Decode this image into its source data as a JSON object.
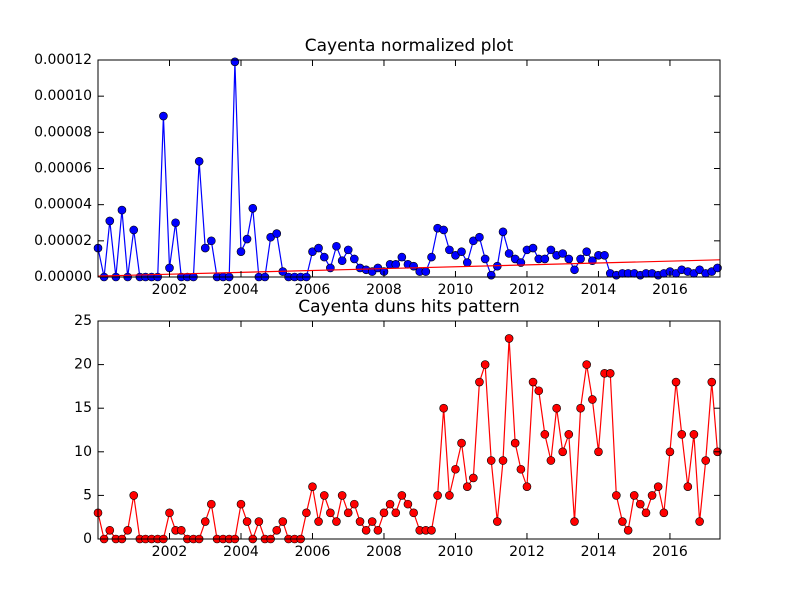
{
  "chart_data": [
    {
      "type": "line",
      "title": "Cayenta normalized plot",
      "x": [
        2000,
        2000.17,
        2000.33,
        2000.5,
        2000.67,
        2000.83,
        2001,
        2001.17,
        2001.33,
        2001.5,
        2001.67,
        2001.83,
        2002,
        2002.17,
        2002.33,
        2002.5,
        2002.67,
        2002.83,
        2003,
        2003.17,
        2003.33,
        2003.5,
        2003.67,
        2003.83,
        2004,
        2004.17,
        2004.33,
        2004.5,
        2004.67,
        2004.83,
        2005,
        2005.17,
        2005.33,
        2005.5,
        2005.67,
        2005.83,
        2006,
        2006.17,
        2006.33,
        2006.5,
        2006.67,
        2006.83,
        2007,
        2007.17,
        2007.33,
        2007.5,
        2007.67,
        2007.83,
        2008,
        2008.17,
        2008.33,
        2008.5,
        2008.67,
        2008.83,
        2009,
        2009.17,
        2009.33,
        2009.5,
        2009.67,
        2009.83,
        2010,
        2010.17,
        2010.33,
        2010.5,
        2010.67,
        2010.83,
        2011,
        2011.17,
        2011.33,
        2011.5,
        2011.67,
        2011.83,
        2012,
        2012.17,
        2012.33,
        2012.5,
        2012.67,
        2012.83,
        2013,
        2013.17,
        2013.33,
        2013.5,
        2013.67,
        2013.83,
        2014,
        2014.17,
        2014.33,
        2014.5,
        2014.67,
        2014.83,
        2015,
        2015.17,
        2015.33,
        2015.5,
        2015.67,
        2015.83,
        2016,
        2016.17,
        2016.33,
        2016.5,
        2016.67,
        2016.83,
        2017,
        2017.17,
        2017.33
      ],
      "series": [
        {
          "color": "#0000ff",
          "values": [
            1.6e-05,
            0,
            3.1e-05,
            0,
            3.7e-05,
            0,
            2.6e-05,
            0,
            0,
            0,
            0,
            8.9e-05,
            5e-06,
            3e-05,
            0,
            0,
            0,
            6.4e-05,
            1.6e-05,
            2e-05,
            0,
            0,
            0,
            0.000119,
            1.4e-05,
            2.1e-05,
            3.8e-05,
            0,
            0,
            2.2e-05,
            2.4e-05,
            3e-06,
            0,
            0,
            0,
            0,
            1.4e-05,
            1.6e-05,
            1.1e-05,
            5e-06,
            1.7e-05,
            9e-06,
            1.5e-05,
            1e-05,
            5e-06,
            4e-06,
            3e-06,
            5e-06,
            3e-06,
            7e-06,
            7e-06,
            1.1e-05,
            7e-06,
            6e-06,
            3e-06,
            3e-06,
            1.1e-05,
            2.7e-05,
            2.6e-05,
            1.5e-05,
            1.2e-05,
            1.4e-05,
            8e-06,
            2e-05,
            2.2e-05,
            1e-05,
            1e-06,
            6e-06,
            2.5e-05,
            1.3e-05,
            1e-05,
            8e-06,
            1.5e-05,
            1.6e-05,
            1e-05,
            1e-05,
            1.5e-05,
            1.2e-05,
            1.3e-05,
            1e-05,
            4e-06,
            1e-05,
            1.4e-05,
            9e-06,
            1.2e-05,
            1.2e-05,
            2e-06,
            1e-06,
            2e-06,
            2e-06,
            2e-06,
            1e-06,
            2e-06,
            2e-06,
            1e-06,
            2e-06,
            3e-06,
            2e-06,
            4e-06,
            3e-06,
            2e-06,
            4e-06,
            2e-06,
            3e-06,
            5e-06
          ]
        }
      ],
      "trend": {
        "color": "#ff0000",
        "x": [
          2000,
          2017.4
        ],
        "values": [
          5e-07,
          9.5e-06
        ]
      },
      "xlim": [
        2000,
        2017.4
      ],
      "xticks": [
        2002,
        2004,
        2006,
        2008,
        2010,
        2012,
        2014,
        2016
      ],
      "ylim": [
        0,
        0.00012
      ],
      "yticks": [
        {
          "value": 0,
          "label": "0.00000"
        },
        {
          "value": 2e-05,
          "label": "0.00002"
        },
        {
          "value": 4e-05,
          "label": "0.00004"
        },
        {
          "value": 6e-05,
          "label": "0.00006"
        },
        {
          "value": 8e-05,
          "label": "0.00008"
        },
        {
          "value": 0.0001,
          "label": "0.00010"
        },
        {
          "value": 0.00012,
          "label": "0.00012"
        }
      ]
    },
    {
      "type": "line",
      "title": "Cayenta duns hits pattern",
      "x": [
        2000,
        2000.17,
        2000.33,
        2000.5,
        2000.67,
        2000.83,
        2001,
        2001.17,
        2001.33,
        2001.5,
        2001.67,
        2001.83,
        2002,
        2002.17,
        2002.33,
        2002.5,
        2002.67,
        2002.83,
        2003,
        2003.17,
        2003.33,
        2003.5,
        2003.67,
        2003.83,
        2004,
        2004.17,
        2004.33,
        2004.5,
        2004.67,
        2004.83,
        2005,
        2005.17,
        2005.33,
        2005.5,
        2005.67,
        2005.83,
        2006,
        2006.17,
        2006.33,
        2006.5,
        2006.67,
        2006.83,
        2007,
        2007.17,
        2007.33,
        2007.5,
        2007.67,
        2007.83,
        2008,
        2008.17,
        2008.33,
        2008.5,
        2008.67,
        2008.83,
        2009,
        2009.17,
        2009.33,
        2009.5,
        2009.67,
        2009.83,
        2010,
        2010.17,
        2010.33,
        2010.5,
        2010.67,
        2010.83,
        2011,
        2011.17,
        2011.33,
        2011.5,
        2011.67,
        2011.83,
        2012,
        2012.17,
        2012.33,
        2012.5,
        2012.67,
        2012.83,
        2013,
        2013.17,
        2013.33,
        2013.5,
        2013.67,
        2013.83,
        2014,
        2014.17,
        2014.33,
        2014.5,
        2014.67,
        2014.83,
        2015,
        2015.17,
        2015.33,
        2015.5,
        2015.67,
        2015.83,
        2016,
        2016.17,
        2016.33,
        2016.5,
        2016.67,
        2016.83,
        2017,
        2017.17,
        2017.33
      ],
      "series": [
        {
          "color": "#ff0000",
          "values": [
            3,
            0,
            1,
            0,
            0,
            1,
            5,
            0,
            0,
            0,
            0,
            0,
            3,
            1,
            1,
            0,
            0,
            0,
            2,
            4,
            0,
            0,
            0,
            0,
            4,
            2,
            0,
            2,
            0,
            0,
            1,
            2,
            0,
            0,
            0,
            3,
            6,
            2,
            5,
            3,
            2,
            5,
            3,
            4,
            2,
            1,
            2,
            1,
            3,
            4,
            3,
            5,
            4,
            3,
            1,
            1,
            1,
            5,
            15,
            5,
            8,
            11,
            6,
            7,
            18,
            20,
            9,
            2,
            9,
            23,
            11,
            8,
            6,
            18,
            17,
            12,
            9,
            15,
            10,
            12,
            2,
            15,
            20,
            16,
            10,
            19,
            19,
            5,
            2,
            1,
            5,
            4,
            3,
            5,
            6,
            3,
            10,
            18,
            12,
            6,
            12,
            2,
            9,
            18,
            10
          ]
        }
      ],
      "xlim": [
        2000,
        2017.4
      ],
      "xticks": [
        2002,
        2004,
        2006,
        2008,
        2010,
        2012,
        2014,
        2016
      ],
      "ylim": [
        0,
        25
      ],
      "yticks": [
        0,
        5,
        10,
        15,
        20,
        25
      ]
    }
  ]
}
